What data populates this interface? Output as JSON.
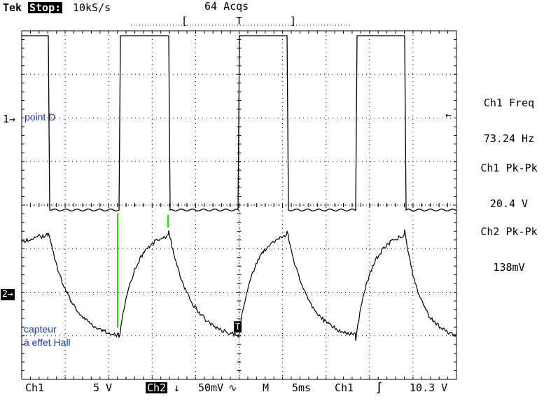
{
  "header": {
    "brand": "Tek",
    "state": "Stop:",
    "rate": "10kS/s",
    "acqs": "64 Acqs",
    "trigger_bracket_left": "[",
    "trigger_marker": "T",
    "trigger_bracket_right": "]"
  },
  "labels": {
    "ch1_marker": "1→",
    "ch2_marker": "2→",
    "trace1_name": "point D",
    "trace2_name_line1": "capteur",
    "trace2_name_line2": "à effet Hall",
    "right_arrow": "←",
    "trigger_point": "T"
  },
  "measurements": [
    {
      "name": "Ch1 Freq",
      "value": "73.24 Hz"
    },
    {
      "name": "Ch1 Pk-Pk",
      "value": "20.4 V"
    },
    {
      "name": "Ch2 Pk-Pk",
      "value": "138mV"
    }
  ],
  "footer": {
    "ch1": "Ch1",
    "ch1_scale": "5 V",
    "ch2": "Ch2",
    "ch2_coupling": "↓",
    "ch2_scale": "50mV",
    "ch2_bw": "∿",
    "timebase_label": "M",
    "timebase": "5ms",
    "trig_source": "Ch1",
    "trig_slope": "∫",
    "trig_level": "10.3 V"
  },
  "colors": {
    "trace": "#000000",
    "annotation_text": "#1a3bb0",
    "cursor": "#22dd00"
  },
  "icons": {
    "trigger_slope": "rising-edge-icon",
    "coupling": "down-arrow-icon"
  }
}
